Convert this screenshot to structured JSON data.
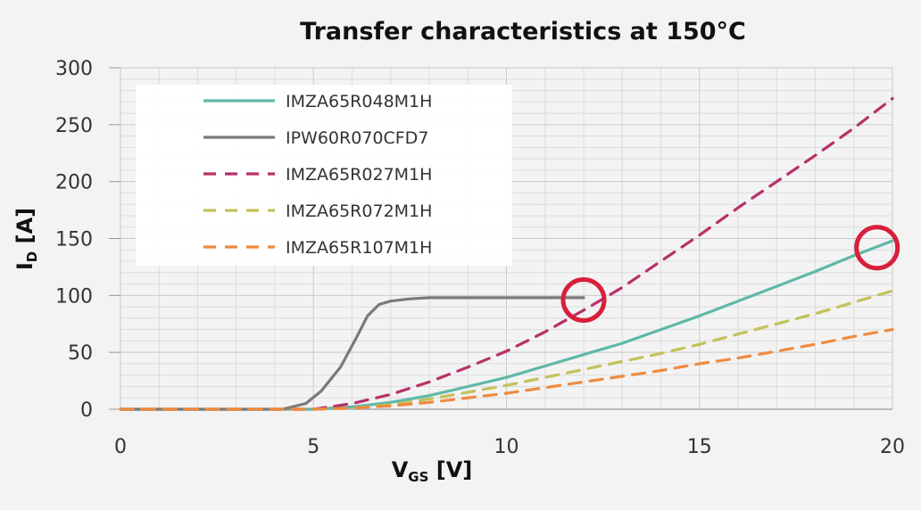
{
  "chart_data": {
    "type": "line",
    "title": "Transfer characteristics at 150°C",
    "xlabel": {
      "main": "V",
      "sub": "GS",
      "unit": " [V]"
    },
    "ylabel": {
      "main": "I",
      "sub": "D",
      "unit": " [A]"
    },
    "xlim": [
      0,
      20
    ],
    "ylim": [
      0,
      300
    ],
    "xticks": [
      0,
      5,
      10,
      15,
      20
    ],
    "yticks": [
      0,
      50,
      100,
      150,
      200,
      250,
      300
    ],
    "grid": true,
    "legend_position": "top-left",
    "series": [
      {
        "name": "IMZA65R048M1H",
        "color": "#5fb8a8",
        "dash": "solid",
        "points": [
          [
            0,
            0
          ],
          [
            5,
            0
          ],
          [
            6,
            2
          ],
          [
            7,
            6
          ],
          [
            8,
            12
          ],
          [
            9,
            20
          ],
          [
            10,
            28
          ],
          [
            11,
            38
          ],
          [
            12,
            48
          ],
          [
            13,
            58
          ],
          [
            14,
            70
          ],
          [
            15,
            82
          ],
          [
            16,
            95
          ],
          [
            17,
            108
          ],
          [
            18,
            121
          ],
          [
            19,
            135
          ],
          [
            20,
            148
          ]
        ]
      },
      {
        "name": "IPW60R070CFD7",
        "color": "#7a7a7a",
        "dash": "solid",
        "points": [
          [
            0,
            0
          ],
          [
            4.2,
            0
          ],
          [
            4.8,
            5
          ],
          [
            5.2,
            16
          ],
          [
            5.7,
            37
          ],
          [
            6.1,
            62
          ],
          [
            6.4,
            82
          ],
          [
            6.7,
            92
          ],
          [
            7.0,
            95
          ],
          [
            7.5,
            97
          ],
          [
            8.0,
            98
          ],
          [
            9.0,
            98
          ],
          [
            10,
            98
          ],
          [
            11,
            98
          ],
          [
            12,
            98
          ]
        ]
      },
      {
        "name": "IMZA65R027M1H",
        "color": "#b8306a",
        "dash": "dashed",
        "points": [
          [
            0,
            0
          ],
          [
            5,
            0
          ],
          [
            6,
            5
          ],
          [
            7,
            13
          ],
          [
            8,
            24
          ],
          [
            9,
            37
          ],
          [
            10,
            51
          ],
          [
            11,
            68
          ],
          [
            12,
            87
          ],
          [
            13,
            107
          ],
          [
            14,
            130
          ],
          [
            15,
            153
          ],
          [
            16,
            177
          ],
          [
            17,
            200
          ],
          [
            18,
            223
          ],
          [
            19,
            247
          ],
          [
            20,
            273
          ]
        ]
      },
      {
        "name": "IMZA65R072M1H",
        "color": "#c2c25a",
        "dash": "dashed",
        "points": [
          [
            0,
            0
          ],
          [
            5,
            0
          ],
          [
            6,
            1
          ],
          [
            7,
            4
          ],
          [
            8,
            9
          ],
          [
            9,
            15
          ],
          [
            10,
            21
          ],
          [
            11,
            28
          ],
          [
            12,
            35
          ],
          [
            13,
            42
          ],
          [
            14,
            49
          ],
          [
            15,
            57
          ],
          [
            16,
            66
          ],
          [
            17,
            75
          ],
          [
            18,
            84
          ],
          [
            19,
            94
          ],
          [
            20,
            104
          ]
        ]
      },
      {
        "name": "IMZA65R107M1H",
        "color": "#ef8a3e",
        "dash": "dashed",
        "points": [
          [
            0,
            0
          ],
          [
            5,
            0
          ],
          [
            6,
            1
          ],
          [
            7,
            3
          ],
          [
            8,
            6
          ],
          [
            9,
            10
          ],
          [
            10,
            14
          ],
          [
            11,
            19
          ],
          [
            12,
            24
          ],
          [
            13,
            29
          ],
          [
            14,
            34
          ],
          [
            15,
            40
          ],
          [
            16,
            45
          ],
          [
            17,
            51
          ],
          [
            18,
            57
          ],
          [
            19,
            64
          ],
          [
            20,
            70
          ]
        ]
      }
    ],
    "annotations": [
      {
        "type": "circle",
        "x": 12.0,
        "y": 96,
        "color": "#d81f3b"
      },
      {
        "type": "circle",
        "x": 19.6,
        "y": 142,
        "color": "#d81f3b"
      }
    ]
  }
}
